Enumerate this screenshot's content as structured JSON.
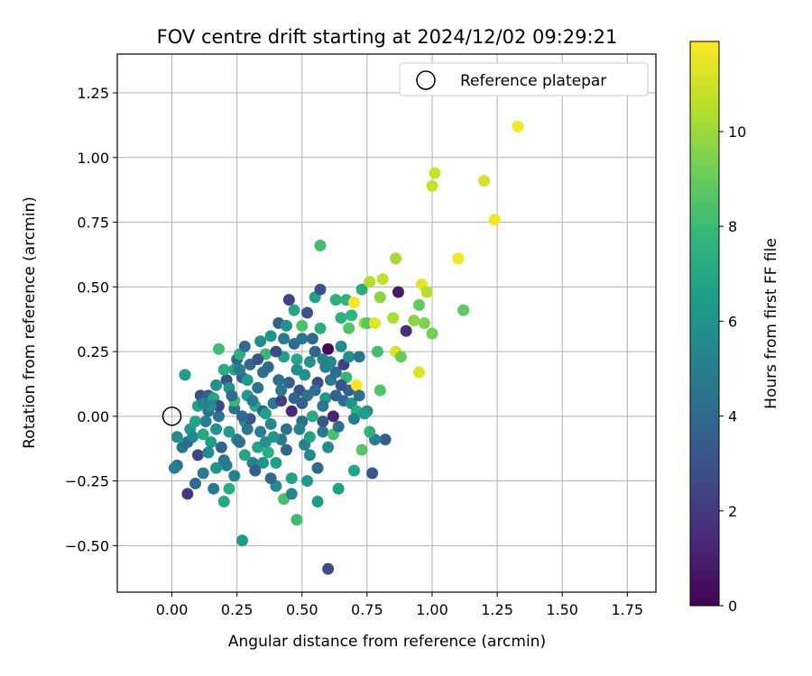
{
  "chart_data": {
    "type": "scatter",
    "title": "FOV centre drift starting at 2024/12/02 09:29:21",
    "xlabel": "Angular distance from reference (arcmin)",
    "ylabel": "Rotation from reference (arcmin)",
    "xlim": [
      -0.21,
      1.86
    ],
    "ylim": [
      -0.68,
      1.4
    ],
    "xticks": [
      "0.00",
      "0.25",
      "0.50",
      "0.75",
      "1.00",
      "1.25",
      "1.50",
      "1.75"
    ],
    "xtick_values": [
      0,
      0.25,
      0.5,
      0.75,
      1.0,
      1.25,
      1.5,
      1.75
    ],
    "yticks": [
      "−0.50",
      "−0.25",
      "0.00",
      "0.25",
      "0.50",
      "0.75",
      "1.00",
      "1.25"
    ],
    "ytick_values": [
      -0.5,
      -0.25,
      0,
      0.25,
      0.5,
      0.75,
      1.0,
      1.25
    ],
    "grid": true,
    "legend": {
      "label": "Reference platepar",
      "location": "top-right"
    },
    "reference_point": {
      "x": 0,
      "y": 0
    },
    "colorbar": {
      "label": "Hours from first FF file",
      "min": 0,
      "max": 11.9,
      "ticks": [
        0,
        2,
        4,
        6,
        8,
        10
      ],
      "colormap": [
        "#440154",
        "#482878",
        "#3e4989",
        "#31688e",
        "#26828e",
        "#1f9e89",
        "#35b779",
        "#6ece58",
        "#b5de2b",
        "#fde725"
      ]
    },
    "points": [
      [
        0.05,
        0.16,
        6.5
      ],
      [
        0.02,
        -0.08,
        5.8
      ],
      [
        0.04,
        -0.12,
        4.8
      ],
      [
        0.06,
        -0.1,
        4.0
      ],
      [
        0.07,
        -0.05,
        6.3
      ],
      [
        0.02,
        -0.19,
        4.5
      ],
      [
        0.01,
        -0.2,
        5.2
      ],
      [
        0.06,
        -0.3,
        2.0
      ],
      [
        0.09,
        -0.26,
        4.1
      ],
      [
        0.11,
        0.08,
        3.0
      ],
      [
        0.1,
        0.04,
        6.8
      ],
      [
        0.08,
        -0.08,
        5.4
      ],
      [
        0.1,
        -0.15,
        2.5
      ],
      [
        0.12,
        -0.22,
        5.0
      ],
      [
        0.14,
        0.02,
        4.2
      ],
      [
        0.15,
        -0.1,
        6.6
      ],
      [
        0.16,
        -0.28,
        4.9
      ],
      [
        0.14,
        0.08,
        3.5
      ],
      [
        0.16,
        0.07,
        7.0
      ],
      [
        0.17,
        -0.05,
        6.0
      ],
      [
        0.18,
        0.0,
        4.5
      ],
      [
        0.19,
        -0.12,
        3.8
      ],
      [
        0.18,
        0.26,
        8.2
      ],
      [
        0.2,
        -0.33,
        7.1
      ],
      [
        0.21,
        0.14,
        2.9
      ],
      [
        0.22,
        0.11,
        6.1
      ],
      [
        0.21,
        -0.19,
        5.1
      ],
      [
        0.22,
        -0.28,
        7.3
      ],
      [
        0.24,
        0.03,
        4.6
      ],
      [
        0.24,
        0.18,
        6.8
      ],
      [
        0.25,
        0.22,
        4.0
      ],
      [
        0.24,
        0.06,
        8.0
      ],
      [
        0.25,
        -0.09,
        5.3
      ],
      [
        0.26,
        0.24,
        7.5
      ],
      [
        0.27,
        0.15,
        3.5
      ],
      [
        0.27,
        -0.48,
        6.4
      ],
      [
        0.28,
        0.27,
        4.2
      ],
      [
        0.28,
        -0.02,
        5.9
      ],
      [
        0.29,
        -0.05,
        4.8
      ],
      [
        0.29,
        0.08,
        6.5
      ],
      [
        0.3,
        0.2,
        3.9
      ],
      [
        0.31,
        -0.18,
        5.2
      ],
      [
        0.32,
        0.04,
        7.2
      ],
      [
        0.33,
        0.11,
        4.7
      ],
      [
        0.33,
        -0.12,
        6.9
      ],
      [
        0.34,
        0.29,
        5.8
      ],
      [
        0.35,
        0.17,
        4.4
      ],
      [
        0.35,
        0.02,
        3.3
      ],
      [
        0.36,
        0.24,
        8.0
      ],
      [
        0.36,
        -0.1,
        6.0
      ],
      [
        0.37,
        -0.14,
        7.4
      ],
      [
        0.37,
        0.19,
        4.1
      ],
      [
        0.38,
        0.31,
        6.2
      ],
      [
        0.38,
        -0.03,
        5.5
      ],
      [
        0.39,
        0.05,
        4.9
      ],
      [
        0.4,
        -0.18,
        6.6
      ],
      [
        0.4,
        -0.27,
        5.7
      ],
      [
        0.41,
        0.36,
        3.6
      ],
      [
        0.41,
        0.14,
        4.3
      ],
      [
        0.42,
        0.06,
        2.2
      ],
      [
        0.42,
        -0.09,
        5.0
      ],
      [
        0.43,
        0.23,
        6.7
      ],
      [
        0.43,
        -0.32,
        8.4
      ],
      [
        0.44,
        0.35,
        6.1
      ],
      [
        0.44,
        -0.05,
        4.6
      ],
      [
        0.45,
        0.45,
        2.4
      ],
      [
        0.45,
        0.13,
        3.8
      ],
      [
        0.46,
        -0.24,
        6.8
      ],
      [
        0.46,
        0.02,
        1.4
      ],
      [
        0.47,
        0.41,
        7.0
      ],
      [
        0.47,
        0.28,
        4.0
      ],
      [
        0.48,
        -0.4,
        8.2
      ],
      [
        0.48,
        0.18,
        5.9
      ],
      [
        0.49,
        0.1,
        3.1
      ],
      [
        0.5,
        0.3,
        4.7
      ],
      [
        0.5,
        -0.02,
        4.2
      ],
      [
        0.5,
        0.35,
        8.5
      ],
      [
        0.51,
        -0.11,
        5.3
      ],
      [
        0.52,
        0.4,
        3.0
      ],
      [
        0.52,
        0.08,
        4.5
      ],
      [
        0.53,
        0.21,
        6.1
      ],
      [
        0.53,
        -0.15,
        5.6
      ],
      [
        0.54,
        0.0,
        7.2
      ],
      [
        0.55,
        0.46,
        6.9
      ],
      [
        0.55,
        0.25,
        3.7
      ],
      [
        0.56,
        0.13,
        2.8
      ],
      [
        0.56,
        -0.33,
        6.4
      ],
      [
        0.57,
        0.66,
        8.3
      ],
      [
        0.57,
        0.49,
        3.1
      ],
      [
        0.57,
        0.34,
        7.4
      ],
      [
        0.58,
        -0.06,
        4.9
      ],
      [
        0.58,
        0.22,
        5.4
      ],
      [
        0.59,
        0.07,
        6.3
      ],
      [
        0.6,
        -0.59,
        2.7
      ],
      [
        0.6,
        0.26,
        0.3
      ],
      [
        0.61,
        0.14,
        4.8
      ],
      [
        0.62,
        0.0,
        1.2
      ],
      [
        0.62,
        -0.07,
        8.4
      ],
      [
        0.63,
        0.45,
        7.5
      ],
      [
        0.63,
        0.17,
        4.2
      ],
      [
        0.64,
        -0.28,
        6.6
      ],
      [
        0.65,
        0.38,
        7.6
      ],
      [
        0.65,
        0.27,
        5.7
      ],
      [
        0.66,
        0.06,
        4.3
      ],
      [
        0.67,
        0.45,
        7.7
      ],
      [
        0.67,
        0.15,
        7.9
      ],
      [
        0.68,
        0.34,
        8.6
      ],
      [
        0.68,
        0.1,
        3.6
      ],
      [
        0.69,
        0.39,
        7.8
      ],
      [
        0.7,
        -0.21,
        6.8
      ],
      [
        0.7,
        0.44,
        11.8
      ],
      [
        0.71,
        0.12,
        11.9
      ],
      [
        0.72,
        0.23,
        4.7
      ],
      [
        0.73,
        0.49,
        7.4
      ],
      [
        0.73,
        -0.13,
        8.8
      ],
      [
        0.74,
        0.36,
        10.2
      ],
      [
        0.75,
        0.02,
        5.9
      ],
      [
        0.75,
        0.36,
        8.8
      ],
      [
        0.76,
        0.52,
        10.6
      ],
      [
        0.77,
        -0.22,
        3.3
      ],
      [
        0.78,
        0.36,
        11.4
      ],
      [
        0.79,
        0.25,
        8.3
      ],
      [
        0.8,
        0.46,
        9.8
      ],
      [
        0.81,
        0.53,
        10.8
      ],
      [
        0.82,
        -0.09,
        3.5
      ],
      [
        0.85,
        0.38,
        10.4
      ],
      [
        0.86,
        0.61,
        10.2
      ],
      [
        0.86,
        0.25,
        11.2
      ],
      [
        0.87,
        0.48,
        0.8
      ],
      [
        0.88,
        0.23,
        9.1
      ],
      [
        0.9,
        0.33,
        1.6
      ],
      [
        0.93,
        0.37,
        9.8
      ],
      [
        0.95,
        0.43,
        9.0
      ],
      [
        0.95,
        0.17,
        11.3
      ],
      [
        0.96,
        0.51,
        11.5
      ],
      [
        0.97,
        0.36,
        9.6
      ],
      [
        0.98,
        0.48,
        10.6
      ],
      [
        1.0,
        0.89,
        10.9
      ],
      [
        1.0,
        0.32,
        9.3
      ],
      [
        1.01,
        0.94,
        11.0
      ],
      [
        1.1,
        0.61,
        11.7
      ],
      [
        1.12,
        0.41,
        8.9
      ],
      [
        1.2,
        0.91,
        11.1
      ],
      [
        1.24,
        0.76,
        11.6
      ],
      [
        1.33,
        1.12,
        11.7
      ],
      [
        0.26,
        -0.1,
        4.4
      ],
      [
        0.3,
        -0.01,
        3.2
      ],
      [
        0.34,
        -0.06,
        5.1
      ],
      [
        0.39,
        -0.08,
        6.2
      ],
      [
        0.44,
        -0.13,
        3.9
      ],
      [
        0.49,
        -0.05,
        5.2
      ],
      [
        0.53,
        -0.08,
        6.8
      ],
      [
        0.58,
        -0.02,
        3.3
      ],
      [
        0.18,
        0.04,
        2.6
      ],
      [
        0.13,
        -0.02,
        4.9
      ],
      [
        0.15,
        0.04,
        5.8
      ],
      [
        0.22,
        -0.06,
        6.5
      ],
      [
        0.27,
        0.0,
        4.1
      ],
      [
        0.31,
        0.06,
        5.0
      ],
      [
        0.36,
        0.01,
        6.7
      ],
      [
        0.42,
        0.1,
        4.8
      ],
      [
        0.47,
        0.07,
        3.9
      ],
      [
        0.51,
        0.16,
        6.0
      ],
      [
        0.55,
        0.1,
        4.4
      ],
      [
        0.59,
        0.19,
        5.3
      ],
      [
        0.63,
        0.08,
        3.8
      ],
      [
        0.66,
        0.2,
        2.3
      ],
      [
        0.69,
        0.05,
        6.2
      ],
      [
        0.71,
        0.02,
        7.4
      ],
      [
        0.64,
        -0.04,
        4.6
      ],
      [
        0.6,
        -0.12,
        5.7
      ],
      [
        0.56,
        -0.2,
        4.1
      ],
      [
        0.52,
        -0.25,
        6.3
      ],
      [
        0.46,
        -0.3,
        5.5
      ],
      [
        0.38,
        -0.24,
        4.0
      ],
      [
        0.35,
        -0.18,
        6.1
      ],
      [
        0.32,
        -0.21,
        3.4
      ],
      [
        0.28,
        -0.15,
        7.0
      ],
      [
        0.24,
        -0.23,
        5.4
      ],
      [
        0.2,
        -0.17,
        4.8
      ],
      [
        0.17,
        -0.2,
        6.2
      ],
      [
        0.14,
        -0.14,
        5.7
      ],
      [
        0.12,
        -0.07,
        7.1
      ],
      [
        0.09,
        -0.02,
        6.9
      ],
      [
        0.12,
        0.05,
        5.3
      ],
      [
        0.17,
        0.12,
        6.0
      ],
      [
        0.2,
        0.18,
        7.3
      ],
      [
        0.23,
        0.08,
        4.3
      ],
      [
        0.26,
        0.18,
        5.0
      ],
      [
        0.29,
        0.14,
        6.4
      ],
      [
        0.33,
        0.22,
        3.2
      ],
      [
        0.4,
        0.25,
        2.7
      ],
      [
        0.43,
        0.3,
        4.9
      ],
      [
        0.48,
        0.22,
        6.9
      ],
      [
        0.5,
        0.05,
        3.6
      ],
      [
        0.54,
        0.3,
        4.1
      ],
      [
        0.58,
        0.04,
        4.7
      ],
      [
        0.61,
        0.21,
        5.6
      ],
      [
        0.65,
        0.12,
        3.0
      ],
      [
        0.68,
        0.23,
        5.8
      ],
      [
        0.72,
        0.08,
        4.4
      ],
      [
        0.8,
        0.1,
        8.6
      ],
      [
        0.78,
        -0.09,
        5.1
      ],
      [
        0.76,
        -0.06,
        7.7
      ],
      [
        0.74,
        0.01,
        6.6
      ],
      [
        0.7,
        -0.01,
        5.2
      ]
    ]
  }
}
